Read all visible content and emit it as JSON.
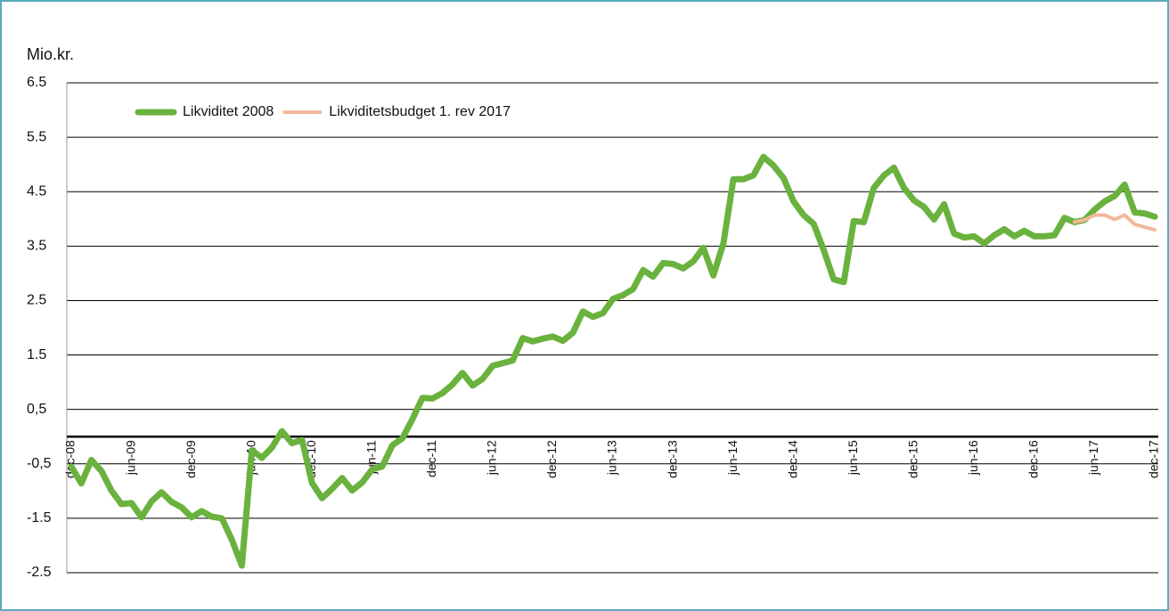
{
  "chart_data": {
    "type": "line",
    "ylabel": "Mio.kr.",
    "categories": [
      "dec-08",
      null,
      null,
      null,
      null,
      null,
      "jun-09",
      null,
      null,
      null,
      null,
      null,
      "dec-09",
      null,
      null,
      null,
      null,
      null,
      "jun-10",
      null,
      null,
      null,
      null,
      null,
      "dec-10",
      null,
      null,
      null,
      null,
      null,
      "jun-11",
      null,
      null,
      null,
      null,
      null,
      "dec-11",
      null,
      null,
      null,
      null,
      null,
      "jun-12",
      null,
      null,
      null,
      null,
      null,
      "dec-12",
      null,
      null,
      null,
      null,
      null,
      "jun-13",
      null,
      null,
      null,
      null,
      null,
      "dec-13",
      null,
      null,
      null,
      null,
      null,
      "jun-14",
      null,
      null,
      null,
      null,
      null,
      "dec-14",
      null,
      null,
      null,
      null,
      null,
      "jun-15",
      null,
      null,
      null,
      null,
      null,
      "dec-15",
      null,
      null,
      null,
      null,
      null,
      "jun-16",
      null,
      null,
      null,
      null,
      null,
      "dec-16",
      null,
      null,
      null,
      null,
      null,
      "jun-17",
      null,
      null,
      null,
      null,
      null,
      "dec-17"
    ],
    "series": [
      {
        "name": "Likviditet 2008",
        "color": "#6ab23e",
        "values": [
          -0.55,
          -0.86,
          -0.43,
          -0.63,
          -0.99,
          -1.24,
          -1.22,
          -1.48,
          -1.19,
          -1.02,
          -1.2,
          -1.3,
          -1.48,
          -1.37,
          -1.47,
          -1.5,
          -1.89,
          -2.37,
          -0.25,
          -0.39,
          -0.2,
          0.1,
          -0.12,
          -0.06,
          -0.85,
          -1.13,
          -0.96,
          -0.76,
          -0.99,
          -0.84,
          -0.6,
          -0.55,
          -0.16,
          -0.03,
          0.32,
          0.71,
          0.7,
          0.8,
          0.96,
          1.17,
          0.94,
          1.06,
          1.3,
          1.35,
          1.4,
          1.81,
          1.75,
          1.8,
          1.84,
          1.76,
          1.91,
          2.3,
          2.2,
          2.27,
          2.53,
          2.6,
          2.71,
          3.06,
          2.94,
          3.19,
          3.17,
          3.09,
          3.22,
          3.47,
          2.96,
          3.55,
          4.73,
          4.73,
          4.8,
          5.14,
          4.98,
          4.75,
          4.32,
          4.07,
          3.91,
          3.43,
          2.89,
          2.84,
          3.96,
          3.94,
          4.57,
          4.8,
          4.94,
          4.57,
          4.34,
          4.22,
          3.99,
          4.27,
          3.73,
          3.66,
          3.68,
          3.55,
          3.7,
          3.81,
          3.68,
          3.78,
          3.68,
          3.68,
          3.7,
          4.02,
          3.94,
          3.98,
          4.17,
          4.32,
          4.42,
          4.63,
          4.12,
          4.1,
          4.04
        ]
      },
      {
        "name": "Likviditetsbudget 1. rev 2017",
        "color": "#f2b89a",
        "values": [
          null,
          null,
          null,
          null,
          null,
          null,
          null,
          null,
          null,
          null,
          null,
          null,
          null,
          null,
          null,
          null,
          null,
          null,
          null,
          null,
          null,
          null,
          null,
          null,
          null,
          null,
          null,
          null,
          null,
          null,
          null,
          null,
          null,
          null,
          null,
          null,
          null,
          null,
          null,
          null,
          null,
          null,
          null,
          null,
          null,
          null,
          null,
          null,
          null,
          null,
          null,
          null,
          null,
          null,
          null,
          null,
          null,
          null,
          null,
          null,
          null,
          null,
          null,
          null,
          null,
          null,
          null,
          null,
          null,
          null,
          null,
          null,
          null,
          null,
          null,
          null,
          null,
          null,
          null,
          null,
          null,
          null,
          null,
          null,
          null,
          null,
          null,
          null,
          null,
          null,
          null,
          null,
          null,
          null,
          null,
          null,
          null,
          null,
          null,
          null,
          3.94,
          3.98,
          4.07,
          4.07,
          3.99,
          4.07,
          3.9,
          3.85,
          3.8
        ]
      }
    ],
    "ylim": [
      -2.5,
      6.5
    ],
    "yticks": [
      6.5,
      5.5,
      4.5,
      3.5,
      2.5,
      1.5,
      {
        "value": 0.5,
        "label": "0,5"
      },
      {
        "value": -0.5,
        "label": "-0,5"
      },
      -1.5,
      -2.5
    ],
    "grid": true
  }
}
